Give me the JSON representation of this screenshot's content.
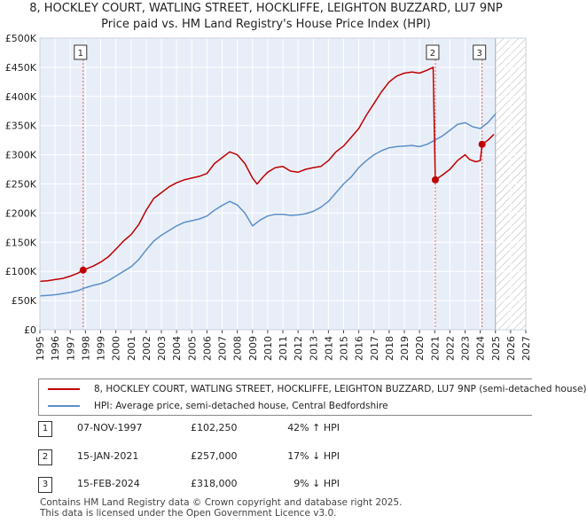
{
  "header": {
    "title": "8, HOCKLEY COURT, WATLING STREET, HOCKLIFFE, LEIGHTON BUZZARD, LU7 9NP",
    "subtitle": "Price paid vs. HM Land Registry's House Price Index (HPI)"
  },
  "colors": {
    "property_line": "#c00000",
    "hpi_line": "#5b8fc9",
    "plot_background": "#e8eef8",
    "grid": "#ffffff",
    "marker_line": "#e06060",
    "hatch": "#b0b0b0"
  },
  "chart_data": {
    "type": "line",
    "title": "8, HOCKLEY COURT, WATLING STREET, HOCKLIFFE, LEIGHTON BUZZARD, LU7 9NP",
    "subtitle": "Price paid vs. HM Land Registry's House Price Index (HPI)",
    "xlabel": "",
    "ylabel": "",
    "xlim": [
      1995,
      2027
    ],
    "ylim": [
      0,
      500000
    ],
    "x_ticks": [
      "1995",
      "1996",
      "1997",
      "1998",
      "1999",
      "2000",
      "2001",
      "2002",
      "2003",
      "2004",
      "2005",
      "2006",
      "2007",
      "2008",
      "2009",
      "2010",
      "2011",
      "2012",
      "2013",
      "2014",
      "2015",
      "2016",
      "2017",
      "2018",
      "2019",
      "2020",
      "2021",
      "2022",
      "2023",
      "2024",
      "2025",
      "2026",
      "2027"
    ],
    "y_ticks": [
      {
        "value": 0,
        "label": "£0"
      },
      {
        "value": 50000,
        "label": "£50K"
      },
      {
        "value": 100000,
        "label": "£100K"
      },
      {
        "value": 150000,
        "label": "£150K"
      },
      {
        "value": 200000,
        "label": "£200K"
      },
      {
        "value": 250000,
        "label": "£250K"
      },
      {
        "value": 300000,
        "label": "£300K"
      },
      {
        "value": 350000,
        "label": "£350K"
      },
      {
        "value": 400000,
        "label": "£400K"
      },
      {
        "value": 450000,
        "label": "£450K"
      },
      {
        "value": 500000,
        "label": "£500K"
      }
    ],
    "forecast_start": 2025.0,
    "series": [
      {
        "name": "8, HOCKLEY COURT, WATLING STREET, HOCKLIFFE, LEIGHTON BUZZARD, LU7 9NP (semi-detached house)",
        "color": "#c00000",
        "x": [
          1995.0,
          1995.5,
          1996.0,
          1996.5,
          1997.0,
          1997.5,
          1997.85,
          1998.5,
          1999.0,
          1999.5,
          2000.0,
          2000.5,
          2001.0,
          2001.5,
          2002.0,
          2002.5,
          2003.0,
          2003.5,
          2004.0,
          2004.5,
          2005.0,
          2005.5,
          2006.0,
          2006.5,
          2007.0,
          2007.5,
          2008.0,
          2008.5,
          2009.0,
          2009.3,
          2009.7,
          2010.0,
          2010.5,
          2011.0,
          2011.5,
          2012.0,
          2012.5,
          2013.0,
          2013.5,
          2014.0,
          2014.5,
          2015.0,
          2015.5,
          2016.0,
          2016.5,
          2017.0,
          2017.5,
          2018.0,
          2018.5,
          2019.0,
          2019.5,
          2020.0,
          2020.5,
          2020.9,
          2021.04,
          2021.5,
          2022.0,
          2022.5,
          2023.0,
          2023.3,
          2023.7,
          2024.0,
          2024.12,
          2024.5,
          2024.9
        ],
        "y": [
          83000,
          84000,
          86000,
          88000,
          92000,
          97000,
          102250,
          109000,
          116000,
          125000,
          138000,
          152000,
          163000,
          180000,
          205000,
          225000,
          235000,
          245000,
          252000,
          257000,
          260000,
          263000,
          268000,
          285000,
          295000,
          305000,
          300000,
          285000,
          260000,
          250000,
          262000,
          270000,
          278000,
          280000,
          272000,
          270000,
          275000,
          278000,
          280000,
          290000,
          305000,
          315000,
          330000,
          345000,
          368000,
          388000,
          408000,
          425000,
          435000,
          440000,
          442000,
          440000,
          445000,
          450000,
          257000,
          265000,
          275000,
          290000,
          300000,
          292000,
          288000,
          290000,
          318000,
          325000,
          335000
        ]
      },
      {
        "name": "HPI: Average price, semi-detached house, Central Bedfordshire",
        "color": "#5b8fc9",
        "x": [
          1995.0,
          1995.5,
          1996.0,
          1996.5,
          1997.0,
          1997.5,
          1998.0,
          1998.5,
          1999.0,
          1999.5,
          2000.0,
          2000.5,
          2001.0,
          2001.5,
          2002.0,
          2002.5,
          2003.0,
          2003.5,
          2004.0,
          2004.5,
          2005.0,
          2005.5,
          2006.0,
          2006.5,
          2007.0,
          2007.5,
          2008.0,
          2008.5,
          2009.0,
          2009.5,
          2010.0,
          2010.5,
          2011.0,
          2011.5,
          2012.0,
          2012.5,
          2013.0,
          2013.5,
          2014.0,
          2014.5,
          2015.0,
          2015.5,
          2016.0,
          2016.5,
          2017.0,
          2017.5,
          2018.0,
          2018.5,
          2019.0,
          2019.5,
          2020.0,
          2020.5,
          2021.0,
          2021.5,
          2022.0,
          2022.5,
          2023.0,
          2023.5,
          2024.0,
          2024.5,
          2025.0
        ],
        "y": [
          58000,
          59000,
          60000,
          62000,
          64000,
          67000,
          72000,
          76000,
          79000,
          84000,
          92000,
          100000,
          108000,
          120000,
          137000,
          152000,
          162000,
          170000,
          178000,
          184000,
          187000,
          190000,
          195000,
          205000,
          213000,
          220000,
          214000,
          200000,
          178000,
          188000,
          195000,
          198000,
          198000,
          196000,
          197000,
          199000,
          203000,
          210000,
          220000,
          235000,
          250000,
          262000,
          278000,
          290000,
          300000,
          307000,
          312000,
          314000,
          315000,
          316000,
          314000,
          318000,
          325000,
          332000,
          342000,
          352000,
          355000,
          348000,
          345000,
          355000,
          370000
        ]
      }
    ],
    "sales": [
      {
        "id": "1",
        "x": 1997.85,
        "y": 102250,
        "date": "07-NOV-1997",
        "price": "£102,250",
        "hpi": "42% ↑ HPI"
      },
      {
        "id": "2",
        "x": 2021.04,
        "y": 257000,
        "date": "15-JAN-2021",
        "price": "£257,000",
        "hpi": "17% ↓ HPI"
      },
      {
        "id": "3",
        "x": 2024.12,
        "y": 318000,
        "date": "15-FEB-2024",
        "price": "£318,000",
        "hpi": "9% ↓ HPI"
      }
    ]
  },
  "legend": {
    "property_label": "8, HOCKLEY COURT, WATLING STREET, HOCKLIFFE, LEIGHTON BUZZARD, LU7 9NP (semi-detached house)",
    "hpi_label": "HPI: Average price, semi-detached house, Central Bedfordshire"
  },
  "sales_table": [
    {
      "num": "1",
      "date": "07-NOV-1997",
      "price": "£102,250",
      "hpi": "42% ↑ HPI"
    },
    {
      "num": "2",
      "date": "15-JAN-2021",
      "price": "£257,000",
      "hpi": "17% ↓ HPI"
    },
    {
      "num": "3",
      "date": "15-FEB-2024",
      "price": "£318,000",
      "hpi": "9% ↓ HPI"
    }
  ],
  "footer": {
    "line1": "Contains HM Land Registry data © Crown copyright and database right 2025.",
    "line2": "This data is licensed under the Open Government Licence v3.0."
  }
}
